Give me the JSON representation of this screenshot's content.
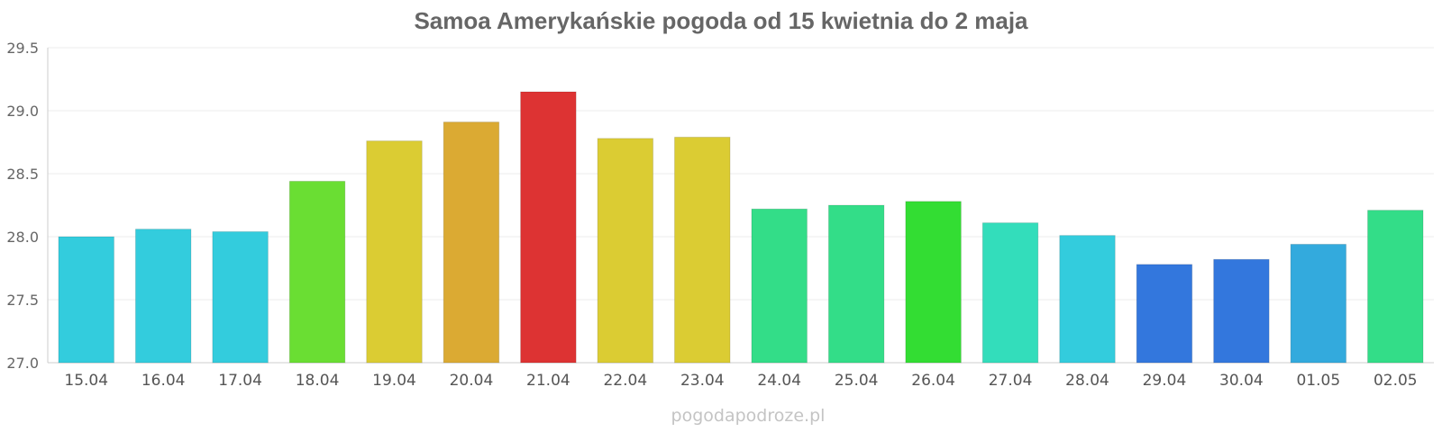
{
  "chart_data": {
    "type": "bar",
    "title": "Samoa Amerykańskie pogoda od 15 kwietnia do 2 maja",
    "categories": [
      "15.04",
      "16.04",
      "17.04",
      "18.04",
      "19.04",
      "20.04",
      "21.04",
      "22.04",
      "23.04",
      "24.04",
      "25.04",
      "26.04",
      "27.04",
      "28.04",
      "29.04",
      "30.04",
      "01.05",
      "02.05"
    ],
    "values": [
      28.0,
      28.06,
      28.04,
      28.44,
      28.76,
      28.91,
      29.15,
      28.78,
      28.79,
      28.22,
      28.25,
      28.28,
      28.11,
      28.01,
      27.78,
      27.82,
      27.94,
      28.21
    ],
    "colors": [
      "#33ccdd",
      "#33ccdd",
      "#33ccdd",
      "#6ade33",
      "#dbcc33",
      "#dbaa33",
      "#dd3333",
      "#dbcc33",
      "#dbcc33",
      "#33dd88",
      "#33dd88",
      "#33dd33",
      "#33ddbb",
      "#33ccdd",
      "#3377dd",
      "#3377dd",
      "#33aadd",
      "#33dd88"
    ],
    "ylim": [
      27.0,
      29.5
    ],
    "yticks": [
      "27.0",
      "27.5",
      "28.0",
      "28.5",
      "29.0",
      "29.5"
    ],
    "xlabel": "",
    "ylabel": "",
    "grid": true,
    "legend": "none"
  },
  "watermark": "pogodapodroze.pl"
}
